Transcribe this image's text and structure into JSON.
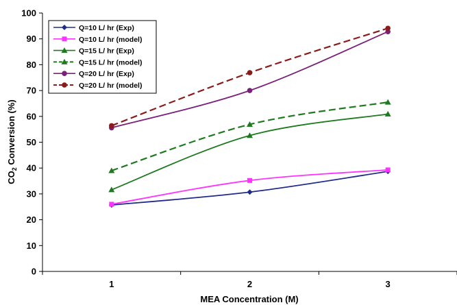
{
  "chart_data": {
    "type": "line",
    "xlabel": "MEA Concentration (M)",
    "ylabel_prefix": "CO",
    "ylabel_subscript": "2",
    "ylabel_suffix": " Conversion (%)",
    "x": [
      1,
      2,
      3
    ],
    "x_ticks": [
      "1",
      "2",
      "3"
    ],
    "xlim": [
      0.5,
      3.5
    ],
    "y_ticks": [
      "0",
      "10",
      "20",
      "30",
      "40",
      "50",
      "60",
      "70",
      "80",
      "90",
      "100"
    ],
    "ylim": [
      0,
      100
    ],
    "grid": false,
    "legend_position": "top-left",
    "series": [
      {
        "name": "Q=10 L/ hr (Exp)",
        "values": [
          25.7,
          30.7,
          38.7
        ],
        "color": "#1f2a8c",
        "marker": "diamond",
        "dashed": false
      },
      {
        "name": "Q=10 L/ hr (model)",
        "values": [
          26.0,
          35.2,
          39.3
        ],
        "color": "#ff33ff",
        "marker": "square",
        "dashed": false
      },
      {
        "name": "Q=15 L/ hr (Exp)",
        "values": [
          31.6,
          52.6,
          60.9
        ],
        "color": "#1e7a1e",
        "marker": "triangle",
        "dashed": false
      },
      {
        "name": "Q=15 L/ hr (model)",
        "values": [
          39.0,
          56.9,
          65.5
        ],
        "color": "#1e7a1e",
        "marker": "triangle",
        "dashed": true
      },
      {
        "name": "Q=20 L/ hr (Exp)",
        "values": [
          55.6,
          70.0,
          92.8
        ],
        "color": "#7a1f7a",
        "marker": "circle",
        "dashed": false
      },
      {
        "name": "Q=20 L/ hr (model)",
        "values": [
          56.4,
          76.9,
          94.1
        ],
        "color": "#8b1a1a",
        "marker": "circle",
        "dashed": true
      }
    ]
  }
}
